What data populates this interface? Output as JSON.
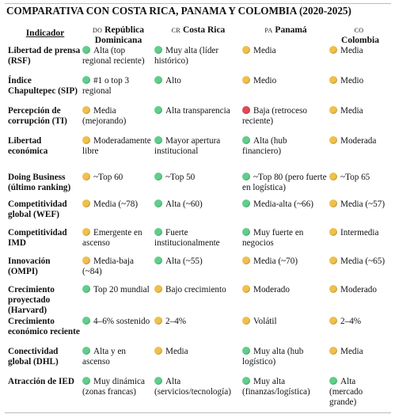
{
  "title": "COMPARATIVA CON COSTA RICA, PANAMA Y COLOMBIA (2020-2025)",
  "colors": {
    "green": "#5fcf8a",
    "yellow": "#f0c04a",
    "red": "#e04a50"
  },
  "headers": {
    "indicator": "Indicador",
    "do_code": "DO",
    "do_name": "República Dominicana",
    "cr_code": "CR",
    "cr_name": "Costa Rica",
    "pa_code": "PA",
    "pa_name": "Panamá",
    "co_code": "CO",
    "co_name": "Colombia"
  },
  "rows": [
    {
      "indicator": "Libertad de prensa (RSF)",
      "do": {
        "status": "green",
        "text": "Alta (top regional reciente)"
      },
      "cr": {
        "status": "green",
        "text": "Muy alta (líder histórico)"
      },
      "pa": {
        "status": "yellow",
        "text": "Media"
      },
      "co": {
        "status": "yellow",
        "text": "Media"
      }
    },
    {
      "indicator": "Índice Chapultepec (SIP)",
      "do": {
        "status": "green",
        "text": "#1 o top 3 regional"
      },
      "cr": {
        "status": "green",
        "text": "Alto"
      },
      "pa": {
        "status": "yellow",
        "text": "Medio"
      },
      "co": {
        "status": "yellow",
        "text": "Medio"
      }
    },
    {
      "indicator": "Percepción de corrupción (TI)",
      "do": {
        "status": "yellow",
        "text": "Media (mejorando)"
      },
      "cr": {
        "status": "green",
        "text": "Alta transparencia"
      },
      "pa": {
        "status": "red",
        "text": "Baja (retroceso reciente)"
      },
      "co": {
        "status": "yellow",
        "text": "Media"
      }
    },
    {
      "indicator": "Libertad económica",
      "do": {
        "status": "yellow",
        "text": "Moderadamente libre"
      },
      "cr": {
        "status": "green",
        "text": "Mayor apertura institucional"
      },
      "pa": {
        "status": "green",
        "text": "Alta (hub financiero)"
      },
      "co": {
        "status": "yellow",
        "text": "Moderada"
      }
    },
    {
      "indicator": "Doing Business (último ranking)",
      "do": {
        "status": "yellow",
        "text": "~Top 60"
      },
      "cr": {
        "status": "green",
        "text": "~Top 50"
      },
      "pa": {
        "status": "green",
        "text": "~Top 80 (pero fuerte en logística)"
      },
      "co": {
        "status": "yellow",
        "text": "~Top 65"
      }
    },
    {
      "indicator": "Competitividad global (WEF)",
      "do": {
        "status": "yellow",
        "text": "Media (~78)"
      },
      "cr": {
        "status": "green",
        "text": "Alta (~60)"
      },
      "pa": {
        "status": "green",
        "text": "Media-alta (~66)"
      },
      "co": {
        "status": "yellow",
        "text": "Media (~57)"
      }
    },
    {
      "indicator": "Competitividad IMD",
      "do": {
        "status": "yellow",
        "text": "Emergente en ascenso"
      },
      "cr": {
        "status": "green",
        "text": "Fuerte institucionalmente"
      },
      "pa": {
        "status": "green",
        "text": "Muy fuerte en negocios"
      },
      "co": {
        "status": "yellow",
        "text": "Intermedia"
      }
    },
    {
      "indicator": "Innovación (OMPI)",
      "do": {
        "status": "yellow",
        "text": "Media-baja (~84)"
      },
      "cr": {
        "status": "green",
        "text": "Alta (~55)"
      },
      "pa": {
        "status": "yellow",
        "text": "Media (~70)"
      },
      "co": {
        "status": "yellow",
        "text": "Media (~65)"
      }
    },
    {
      "indicator": "Crecimiento proyectado (Harvard)",
      "do": {
        "status": "green",
        "text": "Top 20 mundial"
      },
      "cr": {
        "status": "yellow",
        "text": "Bajo crecimiento"
      },
      "pa": {
        "status": "yellow",
        "text": "Moderado"
      },
      "co": {
        "status": "yellow",
        "text": "Moderado"
      }
    },
    {
      "indicator": "Crecimiento económico reciente",
      "do": {
        "status": "green",
        "text": "4–6% sostenido"
      },
      "cr": {
        "status": "yellow",
        "text": "2–4%"
      },
      "pa": {
        "status": "yellow",
        "text": "Volátil"
      },
      "co": {
        "status": "yellow",
        "text": "2–4%"
      }
    },
    {
      "indicator": "Conectividad global (DHL)",
      "do": {
        "status": "green",
        "text": "Alta y en ascenso"
      },
      "cr": {
        "status": "yellow",
        "text": "Media"
      },
      "pa": {
        "status": "green",
        "text": "Muy alta (hub logístico)"
      },
      "co": {
        "status": "yellow",
        "text": "Media"
      }
    },
    {
      "indicator": "Atracción de IED",
      "do": {
        "status": "green",
        "text": "Muy dinámica (zonas francas)"
      },
      "cr": {
        "status": "green",
        "text": "Alta (servicios/tecnología)"
      },
      "pa": {
        "status": "green",
        "text": "Muy alta (finanzas/logística)"
      },
      "co": {
        "status": "green",
        "text": "Alta (mercado grande)"
      }
    }
  ]
}
